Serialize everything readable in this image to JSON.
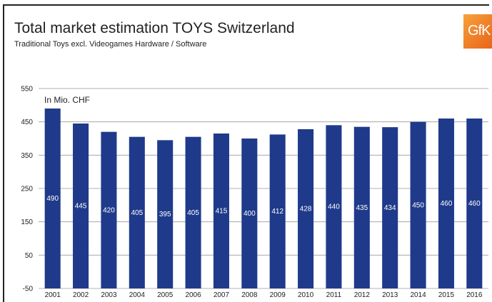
{
  "title": "Total market estimation TOYS Switzerland",
  "subtitle": "Traditional Toys excl. Videogames Hardware / Software",
  "logo_text": "GfK",
  "chart_data": {
    "type": "bar",
    "categories": [
      "2001",
      "2002",
      "2003",
      "2004",
      "2005",
      "2006",
      "2007",
      "2008",
      "2009",
      "2010",
      "2011",
      "2012",
      "2013",
      "2014",
      "2015",
      "2016"
    ],
    "values": [
      490,
      445,
      420,
      405,
      395,
      405,
      415,
      400,
      412,
      428,
      440,
      435,
      434,
      450,
      460,
      460
    ],
    "unit_label": "In Mio. CHF",
    "ylim": [
      -50,
      550
    ],
    "yticks": [
      550,
      450,
      350,
      250,
      150,
      50,
      -50
    ],
    "bar_color": "#1f3a8a",
    "grid": true
  }
}
